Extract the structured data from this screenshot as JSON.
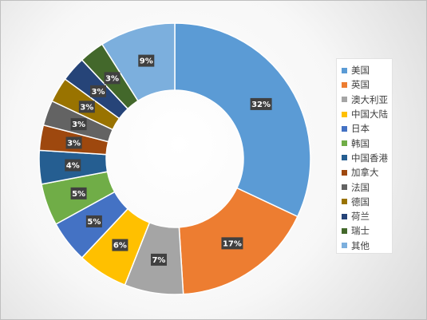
{
  "chart_data": {
    "type": "pie",
    "donut": true,
    "legend_position": "right",
    "categories": [
      "美国",
      "英国",
      "澳大利亚",
      "中国大陆",
      "日本",
      "韩国",
      "中国香港",
      "加拿大",
      "法国",
      "德国",
      "荷兰",
      "瑞士",
      "其他"
    ],
    "values": [
      32,
      17,
      7,
      6,
      5,
      5,
      4,
      3,
      3,
      3,
      3,
      3,
      9
    ],
    "data_labels": [
      "32%",
      "17%",
      "7%",
      "6%",
      "5%",
      "5%",
      "4%",
      "3%",
      "3%",
      "3%",
      "3%",
      "3%",
      "9%"
    ],
    "colors": [
      "#5B9BD5",
      "#ED7D31",
      "#A5A5A5",
      "#FFC000",
      "#4472C4",
      "#70AD47",
      "#255E91",
      "#9E480E",
      "#636363",
      "#997300",
      "#264478",
      "#43682B",
      "#7CAFDD"
    ]
  }
}
